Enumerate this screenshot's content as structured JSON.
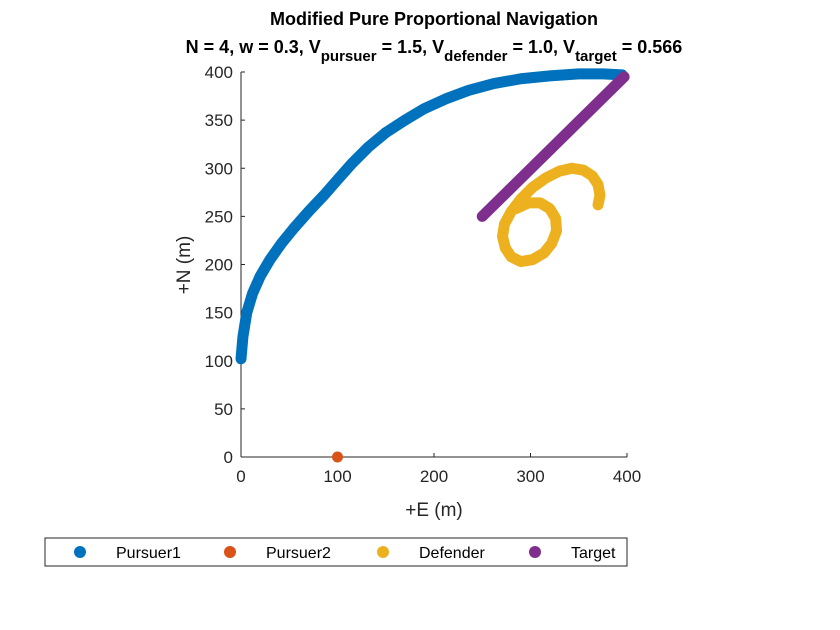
{
  "chart_data": {
    "type": "scatter",
    "title": "Modified Pure Proportional Navigation",
    "subtitle": {
      "prefix": "N = 4, w = 0.3, V",
      "sub1": "pursuer",
      "mid1": " = 1.5, V",
      "sub2": "defender",
      "mid2": " = 1.0, V",
      "sub3": "target",
      "suffix": " = 0.566"
    },
    "xlabel": "+E (m)",
    "ylabel": "+N (m)",
    "xlim": [
      0,
      400
    ],
    "ylim": [
      0,
      400
    ],
    "xticks": [
      "0",
      "100",
      "200",
      "300",
      "400"
    ],
    "yticks": [
      "0",
      "50",
      "100",
      "150",
      "200",
      "250",
      "300",
      "350",
      "400"
    ],
    "xtick_values": [
      0,
      100,
      200,
      300,
      400
    ],
    "ytick_values": [
      0,
      50,
      100,
      150,
      200,
      250,
      300,
      350,
      400
    ],
    "grid": false,
    "legend_position": "bottom",
    "series": [
      {
        "name": "Pursuer1",
        "color": "#0072BD",
        "style": "thick-path",
        "x": [
          0,
          2,
          6,
          12,
          20,
          30,
          42,
          55,
          70,
          86,
          100,
          115,
          132,
          150,
          170,
          190,
          212,
          236,
          262,
          290,
          320,
          350,
          375,
          395
        ],
        "y": [
          102,
          125,
          150,
          170,
          188,
          205,
          222,
          238,
          255,
          272,
          288,
          305,
          322,
          337,
          350,
          362,
          372,
          381,
          388,
          393,
          396,
          398,
          398,
          397
        ]
      },
      {
        "name": "Pursuer2",
        "color": "#D95319",
        "style": "point",
        "x": [
          100
        ],
        "y": [
          0
        ]
      },
      {
        "name": "Defender",
        "color": "#EDB120",
        "style": "thick-path",
        "x": [
          370,
          372,
          370,
          364,
          355,
          343,
          330,
          316,
          302,
          290,
          280,
          273,
          271,
          274,
          280,
          290,
          302,
          314,
          322,
          327,
          326,
          320,
          310,
          298,
          285
        ],
        "y": [
          262,
          272,
          283,
          292,
          298,
          300,
          297,
          290,
          280,
          268,
          255,
          242,
          229,
          217,
          208,
          203,
          205,
          212,
          222,
          235,
          248,
          258,
          264,
          264,
          258
        ]
      },
      {
        "name": "Target",
        "color": "#7E2F8E",
        "style": "thick-path",
        "x": [
          250,
          397
        ],
        "y": [
          250,
          395
        ]
      }
    ]
  }
}
